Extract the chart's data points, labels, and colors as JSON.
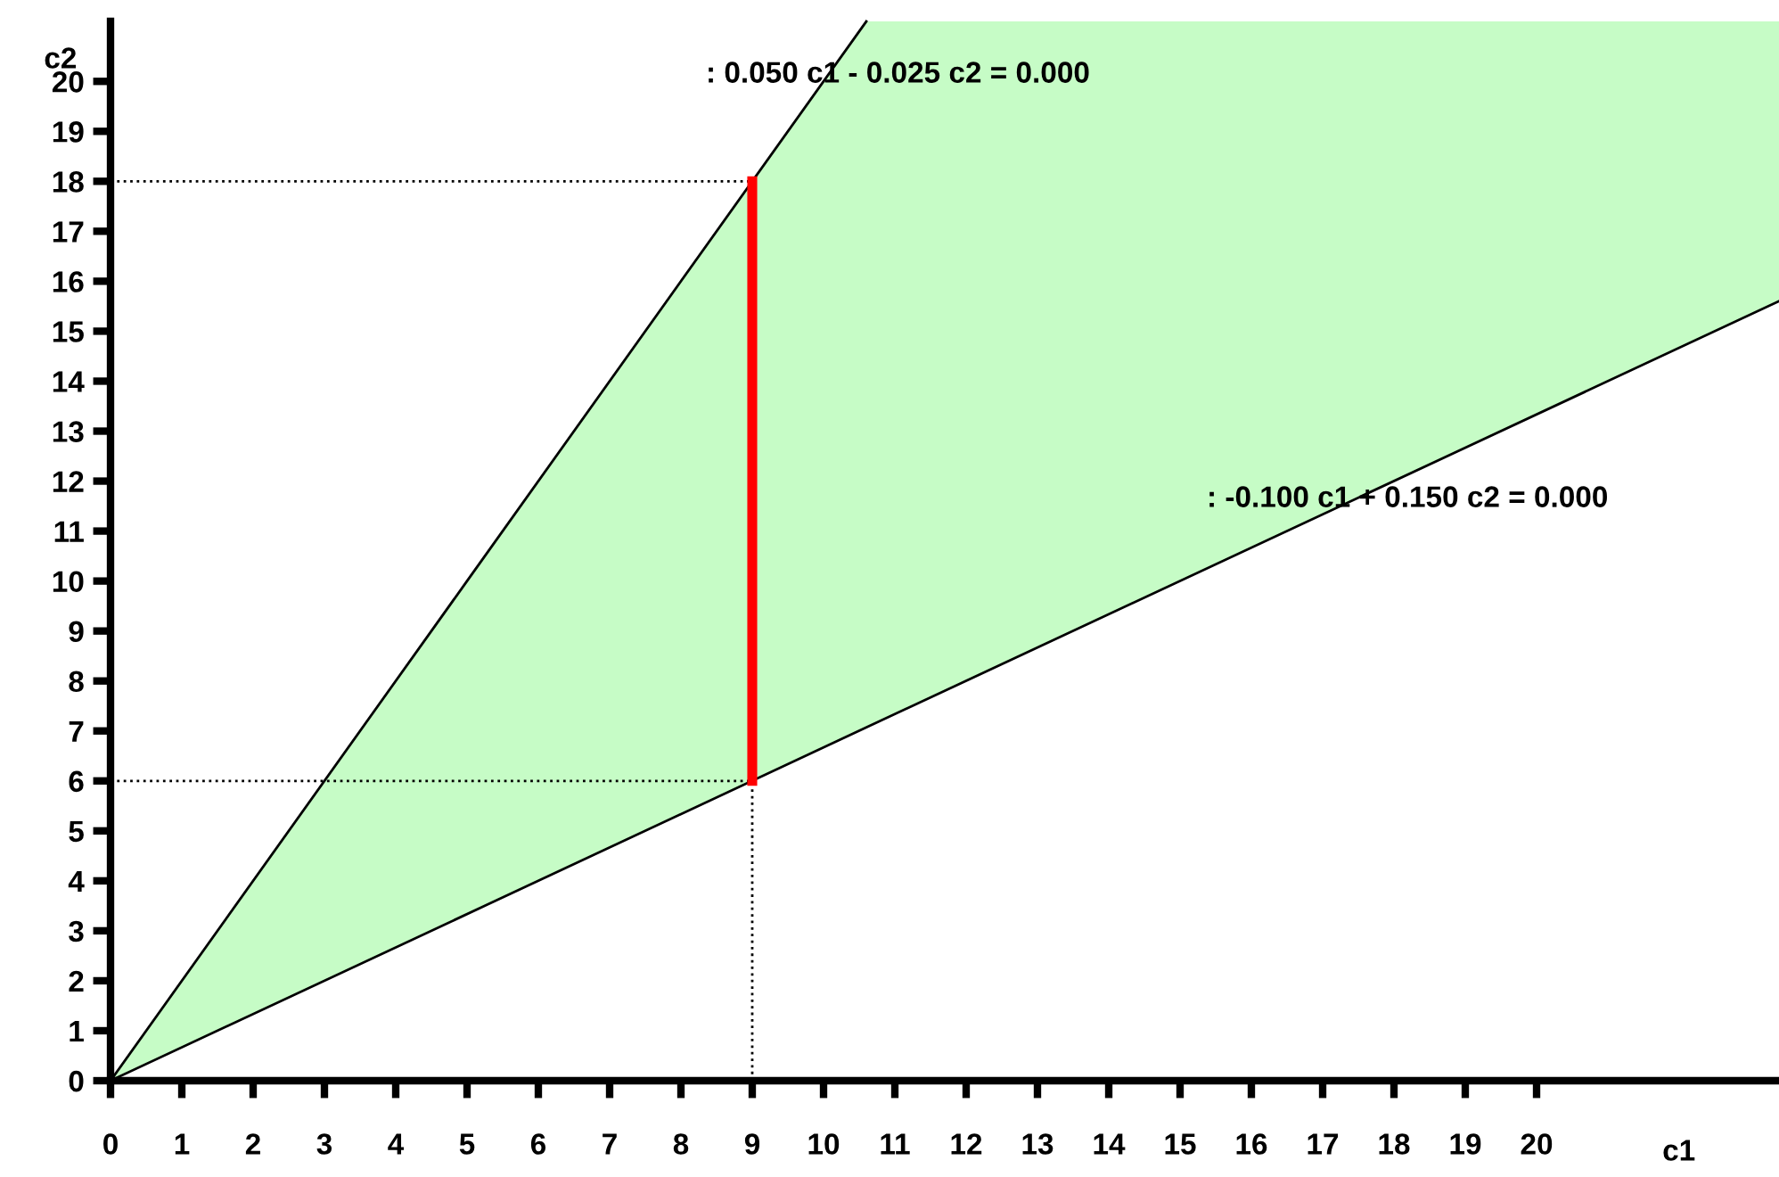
{
  "chart_data": {
    "type": "line",
    "xlabel": "c1",
    "ylabel": "c2",
    "xlim": [
      0,
      23.4
    ],
    "ylim": [
      0,
      21.2
    ],
    "xticks": [
      0,
      1,
      2,
      3,
      4,
      5,
      6,
      7,
      8,
      9,
      10,
      11,
      12,
      13,
      14,
      15,
      16,
      17,
      18,
      19,
      20
    ],
    "yticks": [
      0,
      1,
      2,
      3,
      4,
      5,
      6,
      7,
      8,
      9,
      10,
      11,
      12,
      13,
      14,
      15,
      16,
      17,
      18,
      19,
      20
    ],
    "grid": false,
    "legend": false,
    "marker": "none",
    "series": [
      {
        "color": "#000000",
        "line_style": "solid",
        "x": [
          0,
          5,
          10.6
        ],
        "values": [
          0,
          10,
          21.2
        ]
      },
      {
        "color": "#000000",
        "line_style": "solid",
        "x": [
          0,
          10.6,
          23.4
        ],
        "values": [
          0,
          7.07,
          15.6
        ],
        "lower": [
          0,
          7.07,
          15.6
        ],
        "upper": [
          0,
          21.2,
          21.2
        ]
      },
      {
        "color": "#000000",
        "line_style": "dotted",
        "x": [
          0,
          9
        ],
        "values": [
          18,
          18
        ]
      },
      {
        "color": "#000000",
        "line_style": "dotted",
        "x": [
          0,
          9
        ],
        "values": [
          6,
          6
        ]
      },
      {
        "color": "#000000",
        "line_style": "dotted",
        "x": [
          9,
          9
        ],
        "values": [
          0,
          6
        ]
      },
      {
        "color": "#ff0000",
        "line_style": "solid",
        "x": [
          9,
          9
        ],
        "values": [
          6,
          18
        ]
      }
    ],
    "annotations": [
      ": 0.050 c1 - 0.025 c2 = 0.000",
      ": -0.100 c1 + 0.150 c2 = 0.000"
    ]
  }
}
